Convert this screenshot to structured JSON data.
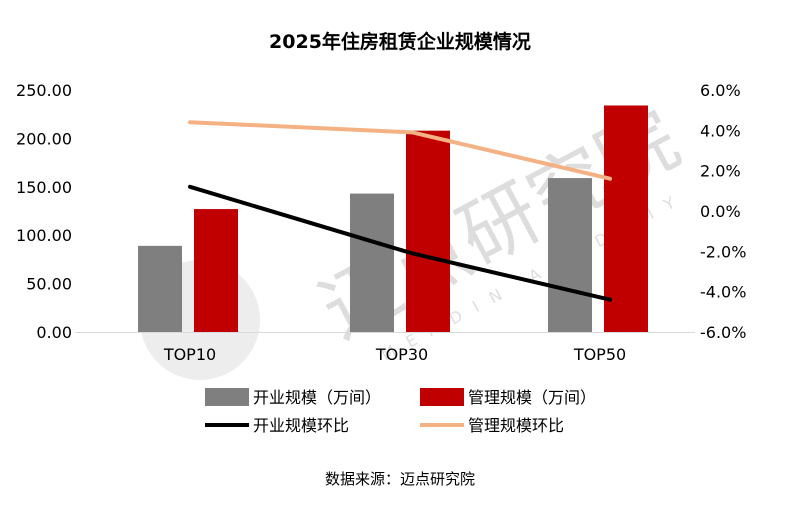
{
  "chart_data": {
    "type": "bar+line",
    "title": "2025年住房租赁企业规模情况",
    "categories": [
      "TOP10",
      "TOP30",
      "TOP50"
    ],
    "series": [
      {
        "name": "开业规模（万间）",
        "type": "bar",
        "axis": "left",
        "color": "#7f7f7f",
        "values": [
          89,
          143,
          159
        ]
      },
      {
        "name": "管理规模（万间）",
        "type": "bar",
        "axis": "left",
        "color": "#c00000",
        "values": [
          127,
          208,
          234
        ]
      },
      {
        "name": "开业规模环比",
        "type": "line",
        "axis": "right",
        "color": "#000000",
        "values": [
          1.2,
          -2.1,
          -4.4
        ]
      },
      {
        "name": "管理规模环比",
        "type": "line",
        "axis": "right",
        "color": "#f4b183",
        "values": [
          4.4,
          3.9,
          1.6
        ]
      }
    ],
    "left_axis": {
      "ylim": [
        0,
        250
      ],
      "ticks": [
        "0.00",
        "50.00",
        "100.00",
        "150.00",
        "200.00",
        "250.00"
      ]
    },
    "right_axis": {
      "ylim": [
        -6,
        6
      ],
      "unit": "%",
      "ticks": [
        "-6.0%",
        "-4.0%",
        "-2.0%",
        "0.0%",
        "2.0%",
        "4.0%",
        "6.0%"
      ]
    },
    "grid": false,
    "legend_position": "bottom",
    "source": "数据来源：迈点研究院"
  },
  "watermark": {
    "text": "迈点研究院",
    "subtext": "MEADIN ACADEMY"
  }
}
